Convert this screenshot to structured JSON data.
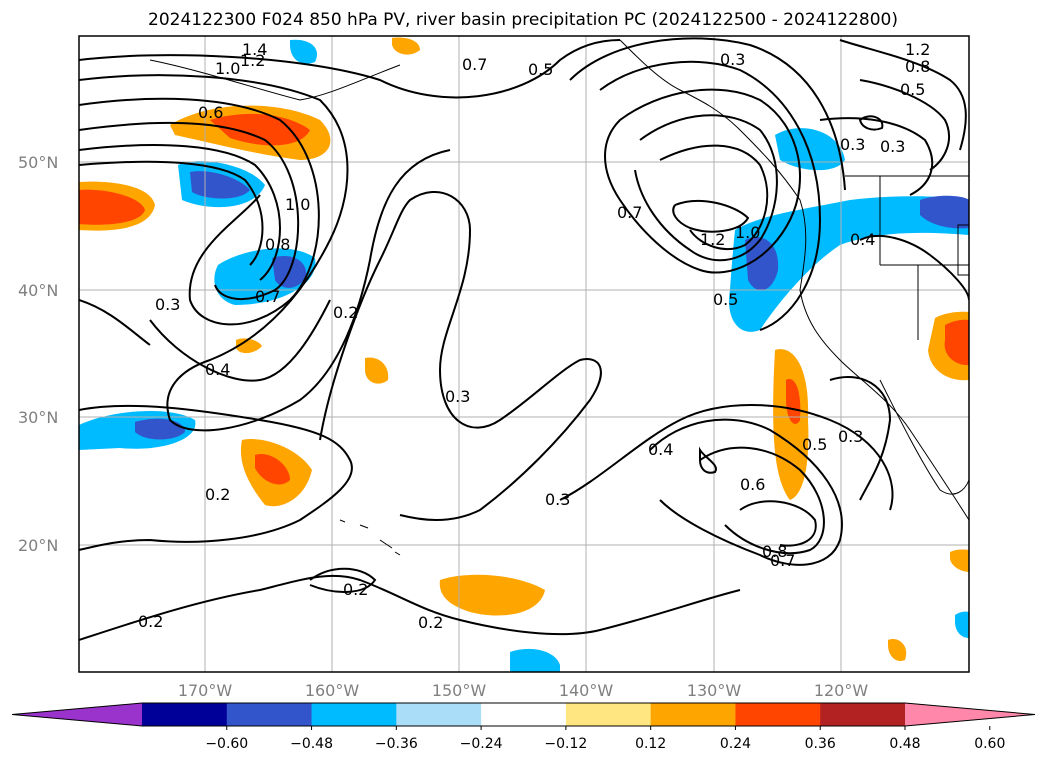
{
  "title": "2024122300 F024 850 hPa PV, river basin precipitation PC (2024122500 - 2024122800)",
  "map": {
    "lat_labels": [
      "50°N",
      "40°N",
      "30°N",
      "20°N"
    ],
    "lon_labels": [
      "170°W",
      "160°W",
      "150°W",
      "140°W",
      "130°W",
      "120°W"
    ],
    "grid": true,
    "contour_labels": [
      "1.4",
      "1.2",
      "1.0",
      "0.7",
      "0.5",
      "0.3",
      "1.2",
      "0.8",
      "0.5",
      "0.6",
      "1.0",
      "0.8",
      "0.7",
      "0.3",
      "0.4",
      "0.2",
      "0.3",
      "1.2",
      "1.0",
      "0.7",
      "0.5",
      "0.3",
      "0.4",
      "0.4",
      "0.3",
      "0.5",
      "0.6",
      "0.8",
      "0.7",
      "0.3",
      "0.2",
      "0.2",
      "0.2",
      "0.2",
      "0.3"
    ]
  },
  "colorbar": {
    "ticks": [
      "−0.60",
      "−0.48",
      "−0.36",
      "−0.24",
      "−0.12",
      "0.12",
      "0.24",
      "0.36",
      "0.48",
      "0.60"
    ],
    "colors": [
      "#9933cc",
      "#000099",
      "#3355cc",
      "#00bbff",
      "#aaddf8",
      "#ffffff",
      "#ffe680",
      "#ffa500",
      "#ff4500",
      "#b22222",
      "#ff88aa"
    ]
  }
}
